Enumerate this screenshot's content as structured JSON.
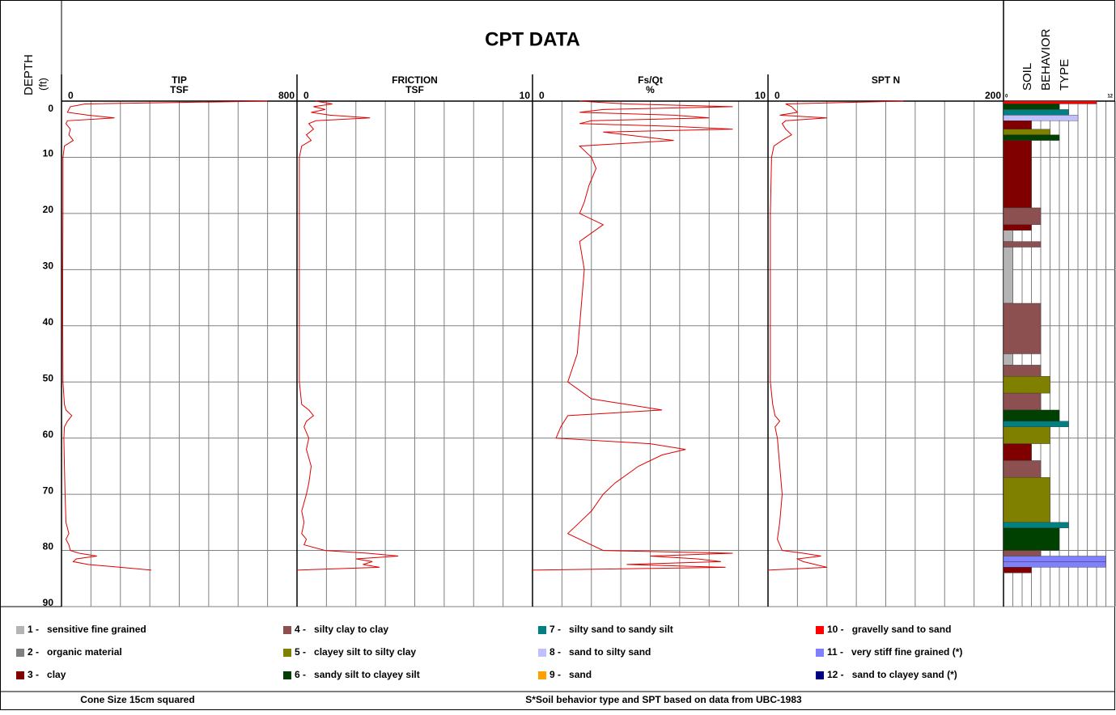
{
  "header": {
    "title": "CPT DATA",
    "depth_label": "DEPTH",
    "depth_unit": "(ft)"
  },
  "depth_axis": {
    "ylim": [
      0,
      90
    ],
    "yticks": [
      0,
      10,
      20,
      30,
      40,
      50,
      60,
      70,
      80,
      90
    ]
  },
  "chart_data": [
    {
      "type": "line",
      "title": "TIP",
      "unit": "TSF",
      "color": "#e00000",
      "xlim": [
        0,
        800
      ],
      "xticks": [
        0,
        800
      ],
      "xgrid": [
        0,
        100,
        200,
        300,
        400,
        500,
        600,
        700,
        800
      ],
      "depth": [
        0,
        0.5,
        1,
        2,
        2.5,
        3,
        3.5,
        4,
        5,
        6,
        7,
        8,
        10,
        20,
        30,
        40,
        50,
        54,
        55,
        56,
        57,
        58,
        60,
        65,
        70,
        75,
        77,
        78,
        79,
        80,
        80.5,
        81,
        81.5,
        82,
        82.5,
        83,
        83.5
      ],
      "values": [
        700,
        80,
        30,
        20,
        90,
        180,
        20,
        15,
        30,
        25,
        40,
        10,
        5,
        5,
        4,
        4,
        5,
        10,
        15,
        35,
        20,
        10,
        8,
        10,
        12,
        15,
        25,
        15,
        25,
        30,
        60,
        120,
        50,
        40,
        90,
        200,
        305
      ]
    },
    {
      "type": "line",
      "title": "FRICTION",
      "unit": "TSF",
      "color": "#e00000",
      "xlim": [
        0,
        10
      ],
      "xticks": [
        0,
        10
      ],
      "xgrid": [
        0,
        1.25,
        2.5,
        3.75,
        5,
        6.25,
        7.5,
        8.75,
        10
      ],
      "depth": [
        0,
        0.5,
        1,
        1.5,
        2,
        2.5,
        3,
        3.5,
        4,
        5,
        6,
        7,
        8,
        10,
        20,
        30,
        40,
        50,
        54,
        55,
        56,
        57,
        58,
        60,
        62,
        65,
        68,
        70,
        73,
        75,
        77,
        78,
        79,
        80,
        80.5,
        81,
        81.5,
        82,
        82.5,
        83,
        83.5
      ],
      "values": [
        0.8,
        1.5,
        0.7,
        1.2,
        0.6,
        1.4,
        3.1,
        0.8,
        0.5,
        0.7,
        0.4,
        0.6,
        0.2,
        0.1,
        0.1,
        0.1,
        0.1,
        0.1,
        0.2,
        0.5,
        0.7,
        0.4,
        0.3,
        0.5,
        0.4,
        0.6,
        0.5,
        0.4,
        0.2,
        0.3,
        0.2,
        0.4,
        0.3,
        1.2,
        3,
        4.3,
        2.5,
        3.2,
        2.8,
        3.5,
        0
      ]
    },
    {
      "type": "line",
      "title": "Fs/Qt",
      "unit": "%",
      "color": "#e00000",
      "xlim": [
        0,
        10
      ],
      "xticks": [
        0,
        10
      ],
      "xgrid": [
        0,
        1.25,
        2.5,
        3.75,
        5,
        6.25,
        7.5,
        8.75,
        10
      ],
      "depth": [
        0,
        0.5,
        1,
        1.5,
        2,
        2.5,
        3,
        3.5,
        4,
        4.5,
        5,
        5.5,
        6,
        7,
        8,
        10,
        12,
        15,
        18,
        20,
        22,
        25,
        30,
        35,
        40,
        45,
        50,
        53,
        55,
        56,
        58,
        60,
        61,
        62,
        63,
        65,
        68,
        70,
        73,
        75,
        77,
        78,
        80,
        80.5,
        81,
        81.5,
        82,
        82.5,
        83,
        83.5
      ],
      "values": [
        2,
        4,
        8.5,
        3,
        2,
        6,
        7.5,
        2.5,
        2,
        6,
        8.5,
        3,
        4,
        6,
        2,
        2.5,
        2.7,
        2.4,
        2.2,
        2,
        3,
        2,
        2.2,
        2.1,
        2,
        1.9,
        1.5,
        2.5,
        5.5,
        1.5,
        1.2,
        1,
        5,
        6.5,
        5.5,
        4.5,
        3.5,
        3,
        2.5,
        2,
        1.5,
        2,
        3,
        8.5,
        5,
        7,
        8,
        4,
        8.2,
        0
      ]
    },
    {
      "type": "line",
      "title": "SPT N",
      "unit": "",
      "color": "#e00000",
      "xlim": [
        0,
        200
      ],
      "xticks": [
        0,
        200
      ],
      "xgrid": [
        0,
        25,
        50,
        75,
        100,
        125,
        150,
        175,
        200
      ],
      "depth": [
        0,
        0.5,
        1,
        2,
        2.5,
        3,
        3.5,
        4,
        5,
        6,
        7,
        8,
        10,
        20,
        30,
        40,
        50,
        54,
        56,
        57,
        58,
        60,
        65,
        70,
        75,
        78,
        80,
        80.5,
        81,
        81.5,
        82,
        82.5,
        83,
        83.5
      ],
      "values": [
        115,
        15,
        20,
        25,
        10,
        50,
        15,
        12,
        15,
        20,
        12,
        5,
        3,
        2,
        2,
        2,
        2,
        4,
        6,
        10,
        6,
        8,
        10,
        12,
        10,
        8,
        12,
        30,
        45,
        25,
        30,
        40,
        50,
        0
      ]
    },
    {
      "type": "soil",
      "title": [
        "SOIL",
        "BEHAVIOR",
        "TYPE"
      ],
      "xlim": [
        0,
        12
      ],
      "xticks": [
        0,
        12
      ],
      "xgrid": [
        0,
        1,
        2,
        3,
        4,
        5,
        6,
        7,
        8,
        9,
        10,
        11,
        12
      ],
      "tops": [
        0,
        0.5,
        1.5,
        2.5,
        3.5,
        5,
        6,
        7,
        19,
        22,
        23,
        25,
        26,
        36,
        45,
        47,
        49,
        52,
        55,
        57,
        58,
        61,
        64,
        67,
        75,
        76,
        80,
        81,
        82,
        83
      ],
      "bottoms": [
        0.5,
        1.5,
        2.5,
        3.5,
        5,
        6,
        7,
        19,
        22,
        23,
        25,
        26,
        36,
        45,
        47,
        49,
        52,
        55,
        57,
        58,
        61,
        64,
        67,
        75,
        76,
        80,
        81,
        82,
        83,
        84
      ],
      "types": [
        10,
        6,
        7,
        8,
        3,
        5,
        6,
        3,
        4,
        3,
        1,
        4,
        1,
        4,
        1,
        4,
        5,
        4,
        6,
        7,
        5,
        3,
        4,
        5,
        7,
        6,
        4,
        11,
        11,
        3
      ]
    }
  ],
  "legend": [
    {
      "label": "1 -",
      "name": "sensitive fine grained",
      "color": "#b4b4b4"
    },
    {
      "label": "2 -",
      "name": "organic material",
      "color": "#808080"
    },
    {
      "label": "3 -",
      "name": "clay",
      "color": "#800000"
    },
    {
      "label": "4 -",
      "name": "silty clay to clay",
      "color": "#8c5050"
    },
    {
      "label": "5 -",
      "name": "clayey silt to silty clay",
      "color": "#808000"
    },
    {
      "label": "6 -",
      "name": "sandy silt to clayey silt",
      "color": "#004000"
    },
    {
      "label": "7 -",
      "name": "silty sand to sandy silt",
      "color": "#008080"
    },
    {
      "label": "8 -",
      "name": "sand to silty sand",
      "color": "#c0c0ff"
    },
    {
      "label": "9 -",
      "name": "sand",
      "color": "#ffa000"
    },
    {
      "label": "10 -",
      "name": "gravelly sand to sand",
      "color": "#ff0000"
    },
    {
      "label": "11 -",
      "name": "very stiff fine grained (*)",
      "color": "#8080ff"
    },
    {
      "label": "12 -",
      "name": "sand to clayey sand (*)",
      "color": "#000080"
    }
  ],
  "footer": {
    "left": "Cone Size 15cm squared",
    "right": "S*Soil behavior type and SPT based on data from UBC-1983"
  }
}
